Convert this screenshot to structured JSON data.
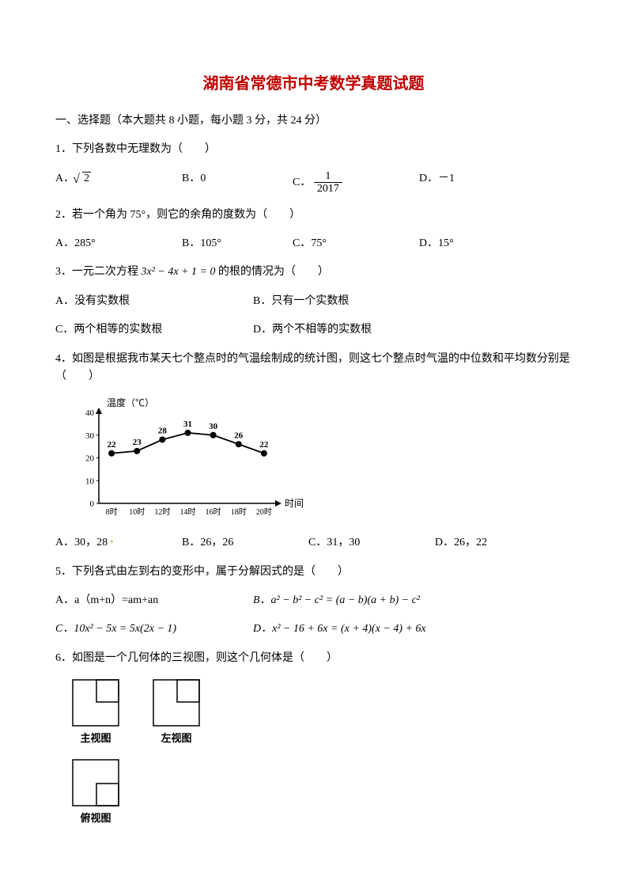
{
  "title": "湖南省常德市中考数学真题试题",
  "section1": "一、选择题（本大题共 8 小题，每小题 3 分，共 24 分）",
  "q1": {
    "text": "1．下列各数中无理数为（　　）",
    "optA_prefix": "A．",
    "optA_val": "2",
    "optB": "B．0",
    "optC_prefix": "C．",
    "optC_num": "1",
    "optC_den": "2017",
    "optD": "D．－1"
  },
  "q2": {
    "text": "2．若一个角为 75°，则它的余角的度数为（　　）",
    "optA": "A．285°",
    "optB": "B．105°",
    "optC": "C．75°",
    "optD": "D．15°"
  },
  "q3": {
    "text_pre": "3．一元二次方程 ",
    "eq": "3x² − 4x + 1 = 0",
    "text_post": " 的根的情况为（　　）",
    "optA": "A．没有实数根",
    "optB": "B．只有一个实数根",
    "optC": "C．两个相等的实数根",
    "optD": "D．两个不相等的实数根"
  },
  "q4": {
    "text": "4．如图是根据我市某天七个整点时的气温绘制成的统计图，则这七个整点时气温的中位数和平均数分别是（　　）",
    "chart": {
      "type": "line",
      "ylabel": "温度（℃）",
      "xlabel": "时间",
      "ylim": [
        0,
        40
      ],
      "ytick_step": 10,
      "yticks": [
        0,
        10,
        20,
        30,
        40
      ],
      "categories": [
        "8时",
        "10时",
        "12时",
        "14时",
        "16时",
        "18时",
        "20时"
      ],
      "values": [
        22,
        23,
        28,
        31,
        30,
        26,
        22
      ],
      "line_color": "#000000",
      "marker_color": "#000000",
      "marker_size": 4,
      "axis_color": "#000000",
      "background_color": "#ffffff",
      "label_fontsize": 12
    },
    "optA": "A．30，28",
    "optB": "B．26，26",
    "optC": "C．31，30",
    "optD": "D．26，22"
  },
  "q5": {
    "text": "5．下列各式由左到右的变形中，属于分解因式的是（　　）",
    "optA": "A．a（m+n）=am+an",
    "optB": "B．a² − b² − c² = (a − b)(a + b) − c²",
    "optC": "C．10x² − 5x = 5x(2x − 1)",
    "optD": "D．x² − 16 + 6x = (x + 4)(x − 4) + 6x"
  },
  "q6": {
    "text": "6．如图是一个几何体的三视图，则这个几何体是（　　）",
    "views": {
      "main_label": "主视图",
      "left_label": "左视图",
      "top_label": "俯视图",
      "stroke_color": "#000000",
      "big_size": 58,
      "small_size": 28
    }
  }
}
